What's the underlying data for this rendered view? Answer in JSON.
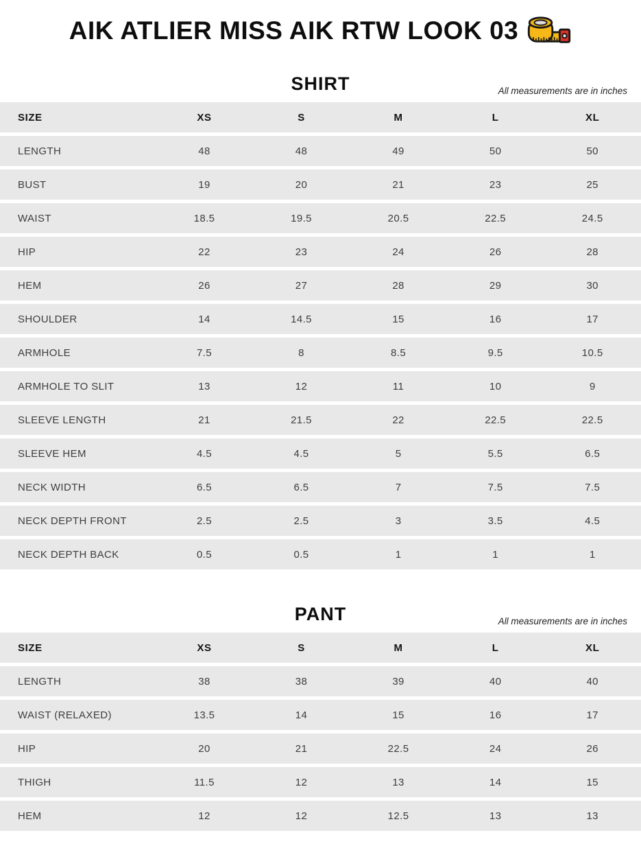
{
  "page": {
    "title": "AIK ATLIER MISS AIK RTW LOOK 03",
    "title_icon": "tape-measure-icon"
  },
  "colors": {
    "row_background": "#E8E8E8",
    "text_primary": "#111111",
    "text_secondary": "#3D3D3D",
    "icon_yellow": "#F5B818",
    "icon_red": "#D93025"
  },
  "tables": [
    {
      "title": "SHIRT",
      "note": "All measurements are in inches",
      "columns": [
        "SIZE",
        "XS",
        "S",
        "M",
        "L",
        "XL"
      ],
      "rows": [
        {
          "label": "LENGTH",
          "values": [
            "48",
            "48",
            "49",
            "50",
            "50"
          ]
        },
        {
          "label": "BUST",
          "values": [
            "19",
            "20",
            "21",
            "23",
            "25"
          ]
        },
        {
          "label": "WAIST",
          "values": [
            "18.5",
            "19.5",
            "20.5",
            "22.5",
            "24.5"
          ]
        },
        {
          "label": "HIP",
          "values": [
            "22",
            "23",
            "24",
            "26",
            "28"
          ]
        },
        {
          "label": "HEM",
          "values": [
            "26",
            "27",
            "28",
            "29",
            "30"
          ]
        },
        {
          "label": "SHOULDER",
          "values": [
            "14",
            "14.5",
            "15",
            "16",
            "17"
          ]
        },
        {
          "label": "ARMHOLE",
          "values": [
            "7.5",
            "8",
            "8.5",
            "9.5",
            "10.5"
          ]
        },
        {
          "label": "ARMHOLE TO SLIT",
          "values": [
            "13",
            "12",
            "11",
            "10",
            "9"
          ]
        },
        {
          "label": "SLEEVE LENGTH",
          "values": [
            "21",
            "21.5",
            "22",
            "22.5",
            "22.5"
          ]
        },
        {
          "label": "SLEEVE HEM",
          "values": [
            "4.5",
            "4.5",
            "5",
            "5.5",
            "6.5"
          ]
        },
        {
          "label": "NECK WIDTH",
          "values": [
            "6.5",
            "6.5",
            "7",
            "7.5",
            "7.5"
          ]
        },
        {
          "label": "NECK DEPTH FRONT",
          "values": [
            "2.5",
            "2.5",
            "3",
            "3.5",
            "4.5"
          ]
        },
        {
          "label": "NECK DEPTH BACK",
          "values": [
            "0.5",
            "0.5",
            "1",
            "1",
            "1"
          ]
        }
      ]
    },
    {
      "title": "PANT",
      "note": "All measurements are in inches",
      "columns": [
        "SIZE",
        "XS",
        "S",
        "M",
        "L",
        "XL"
      ],
      "rows": [
        {
          "label": "LENGTH",
          "values": [
            "38",
            "38",
            "39",
            "40",
            "40"
          ]
        },
        {
          "label": "WAIST (RELAXED)",
          "values": [
            "13.5",
            "14",
            "15",
            "16",
            "17"
          ]
        },
        {
          "label": "HIP",
          "values": [
            "20",
            "21",
            "22.5",
            "24",
            "26"
          ]
        },
        {
          "label": "THIGH",
          "values": [
            "11.5",
            "12",
            "13",
            "14",
            "15"
          ]
        },
        {
          "label": "HEM",
          "values": [
            "12",
            "12",
            "12.5",
            "13",
            "13"
          ]
        }
      ]
    }
  ]
}
